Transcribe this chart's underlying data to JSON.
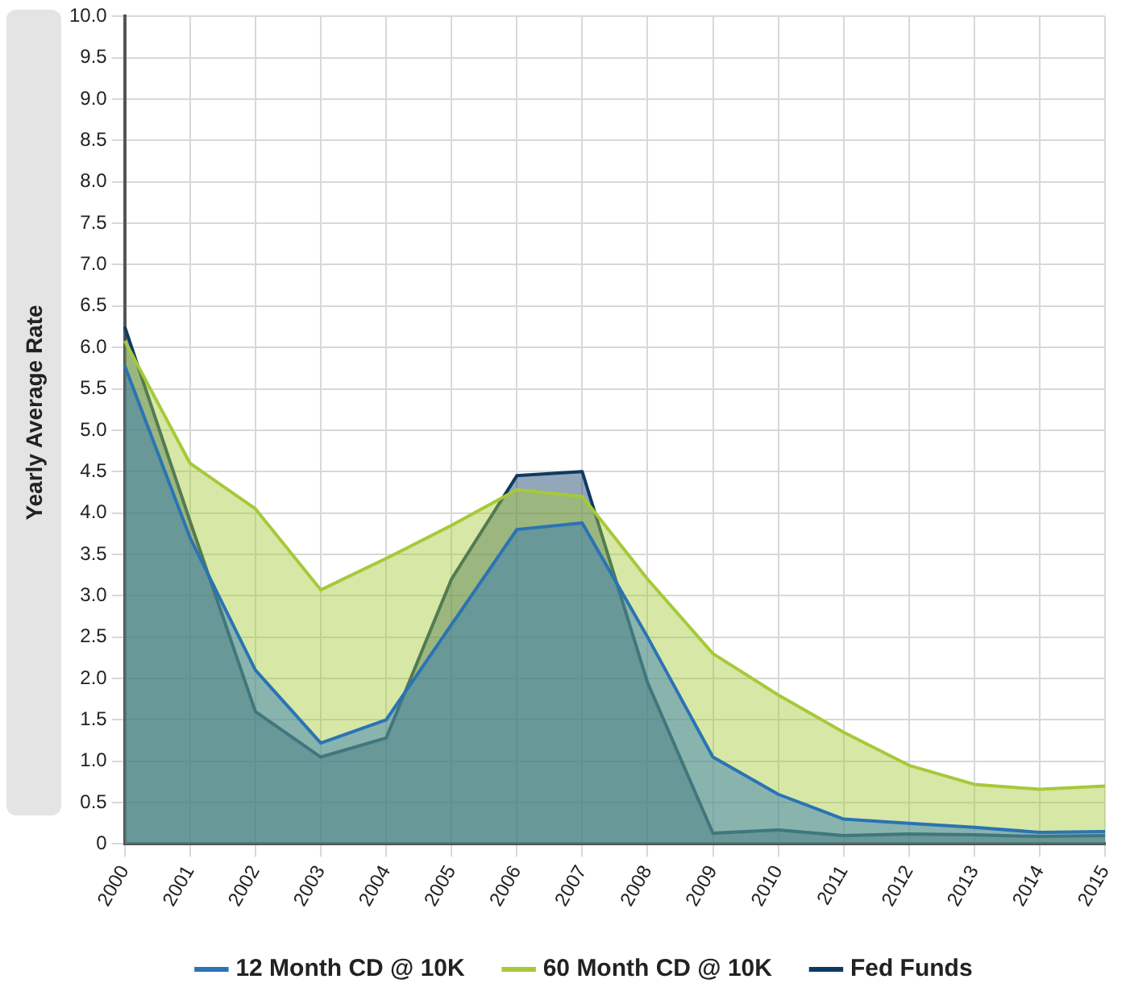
{
  "chart_data": {
    "type": "area",
    "ylabel": "Yearly Average Rate",
    "categories": [
      "2000",
      "2001",
      "2002",
      "2003",
      "2004",
      "2005",
      "2006",
      "2007",
      "2008",
      "2009",
      "2010",
      "2011",
      "2012",
      "2013",
      "2014",
      "2015"
    ],
    "series": [
      {
        "name": "12 Month CD @ 10K",
        "color": "#2a73b5",
        "values": [
          5.78,
          3.7,
          2.1,
          1.22,
          1.5,
          2.65,
          3.8,
          3.88,
          2.5,
          1.05,
          0.6,
          0.3,
          0.25,
          0.2,
          0.14,
          0.15
        ]
      },
      {
        "name": "60 Month CD @ 10K",
        "color": "#a6c93a",
        "values": [
          6.08,
          4.6,
          4.05,
          3.07,
          3.45,
          3.85,
          4.28,
          4.2,
          3.2,
          2.3,
          1.8,
          1.35,
          0.95,
          0.72,
          0.66,
          0.7
        ]
      },
      {
        "name": "Fed Funds",
        "color": "#0e3b63",
        "values": [
          6.25,
          3.9,
          1.6,
          1.05,
          1.28,
          3.2,
          4.45,
          4.5,
          1.95,
          0.13,
          0.17,
          0.1,
          0.12,
          0.11,
          0.09,
          0.1
        ]
      }
    ],
    "ylim": [
      0,
      10
    ],
    "yticks": [
      0,
      0.5,
      {
        "value": 1,
        "label": "1.0"
      },
      1.5,
      {
        "value": 2,
        "label": "2.0"
      },
      2.5,
      {
        "value": 3,
        "label": "3.0"
      },
      3.5,
      {
        "value": 4,
        "label": "4.0"
      },
      4.5,
      {
        "value": 5,
        "label": "5.0"
      },
      5.5,
      {
        "value": 6,
        "label": "6.0"
      },
      6.5,
      {
        "value": 7,
        "label": "7.0"
      },
      7.5,
      {
        "value": 8,
        "label": "8.0"
      },
      8.5,
      {
        "value": 9,
        "label": "9.0"
      },
      9.5,
      {
        "value": 10,
        "label": "10.0"
      }
    ],
    "grid": true,
    "legend": "bottom",
    "marker": "none",
    "line_style": "solid"
  }
}
